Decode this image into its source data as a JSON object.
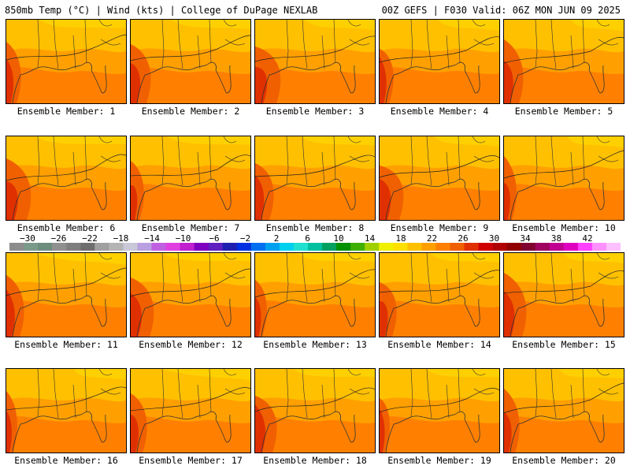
{
  "header": {
    "left": "850mb Temp (°C) | Wind (kts) | College of DuPage NEXLAB",
    "right": "00Z GEFS | F030 Valid: 06Z MON JUN 09 2025"
  },
  "members": [
    {
      "label": "Ensemble Member: 1",
      "member": 1
    },
    {
      "label": "Ensemble Member: 2",
      "member": 2
    },
    {
      "label": "Ensemble Member: 3",
      "member": 3
    },
    {
      "label": "Ensemble Member: 4",
      "member": 4
    },
    {
      "label": "Ensemble Member: 5",
      "member": 5
    },
    {
      "label": "Ensemble Member: 6",
      "member": 6
    },
    {
      "label": "Ensemble Member: 7",
      "member": 7
    },
    {
      "label": "Ensemble Member: 8",
      "member": 8
    },
    {
      "label": "Ensemble Member: 9",
      "member": 9
    },
    {
      "label": "Ensemble Member: 10",
      "member": 10
    },
    {
      "label": "Ensemble Member: 11",
      "member": 11
    },
    {
      "label": "Ensemble Member: 12",
      "member": 12
    },
    {
      "label": "Ensemble Member: 13",
      "member": 13
    },
    {
      "label": "Ensemble Member: 14",
      "member": 14
    },
    {
      "label": "Ensemble Member: 15",
      "member": 15
    },
    {
      "label": "Ensemble Member: 16",
      "member": 16
    },
    {
      "label": "Ensemble Member: 17",
      "member": 17
    },
    {
      "label": "Ensemble Member: 18",
      "member": 18
    },
    {
      "label": "Ensemble Member: 19",
      "member": 19
    },
    {
      "label": "Ensemble Member: 20",
      "member": 20
    }
  ],
  "colorbar": {
    "tick_labels": [
      "−30",
      "−26",
      "−22",
      "−18",
      "−14",
      "−10",
      "−6",
      "−2",
      "2",
      "6",
      "10",
      "14",
      "18",
      "22",
      "26",
      "30",
      "34",
      "38",
      "42"
    ],
    "colors": [
      "#8c8c8c",
      "#7a9a8a",
      "#6d8d7d",
      "#909090",
      "#7f7f7f",
      "#6e6e6e",
      "#a0a0a0",
      "#b4b4b4",
      "#c8c8d8",
      "#b9a0e0",
      "#c060e0",
      "#e040e0",
      "#c020d0",
      "#8000c0",
      "#6020c0",
      "#2020b0",
      "#0030e0",
      "#0070f0",
      "#00a0f0",
      "#00d0f0",
      "#20e0d0",
      "#00c0a0",
      "#00a060",
      "#009000",
      "#40b000",
      "#a0d000",
      "#f0f000",
      "#ffe000",
      "#ffc000",
      "#ffa000",
      "#ff8000",
      "#f06000",
      "#e03000",
      "#d00000",
      "#b00000",
      "#900000",
      "#800030",
      "#a00060",
      "#c00090",
      "#e000c0",
      "#ff40ff",
      "#ff90ff",
      "#ffc0ff"
    ]
  },
  "map": {
    "warm_colors": [
      "#ffc000",
      "#ffa000",
      "#ff8000",
      "#f06000",
      "#e03000"
    ],
    "land_color": "#ffb000"
  }
}
